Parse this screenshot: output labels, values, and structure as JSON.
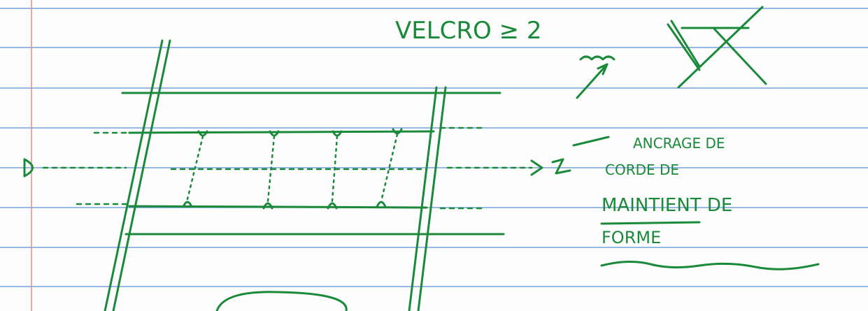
{
  "annotations": {
    "top": "VELCRO ≥ 2",
    "left": "D",
    "side": [
      "ANCRAGE DE",
      "CORDE DE",
      "MAINTIENT DE",
      "FORME"
    ]
  }
}
